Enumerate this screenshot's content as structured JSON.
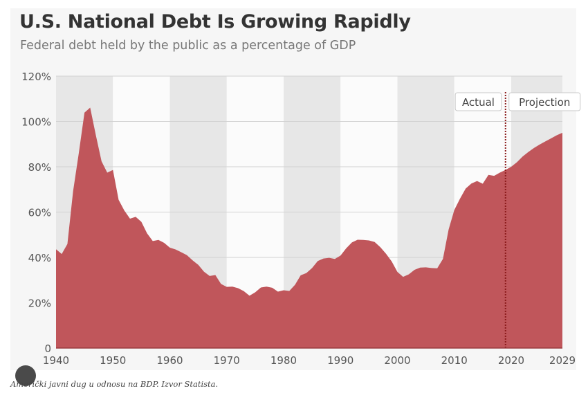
{
  "chart_data": {
    "type": "area",
    "title": "U.S. National Debt Is Growing Rapidly",
    "subtitle": "Federal debt held by the public as a percentage of GDP",
    "xlabel": "",
    "ylabel": "",
    "xlim": [
      1940,
      2029
    ],
    "ylim": [
      0,
      120
    ],
    "x_ticks": [
      1940,
      1950,
      1960,
      1970,
      1980,
      1990,
      2000,
      2010,
      2020,
      2029
    ],
    "y_ticks": [
      0,
      20,
      40,
      60,
      80,
      100,
      120
    ],
    "y_tick_labels": [
      "0",
      "20%",
      "40%",
      "60%",
      "80%",
      "100%",
      "120%"
    ],
    "projection_start": 2019,
    "annotations": {
      "actual": "Actual",
      "projection": "Projection"
    },
    "color": "#c0565b",
    "series": [
      {
        "name": "Federal debt held by the public (% of GDP)",
        "x": [
          1940,
          1941,
          1942,
          1943,
          1944,
          1945,
          1946,
          1947,
          1948,
          1949,
          1950,
          1951,
          1952,
          1953,
          1954,
          1955,
          1956,
          1957,
          1958,
          1959,
          1960,
          1961,
          1962,
          1963,
          1964,
          1965,
          1966,
          1967,
          1968,
          1969,
          1970,
          1971,
          1972,
          1973,
          1974,
          1975,
          1976,
          1977,
          1978,
          1979,
          1980,
          1981,
          1982,
          1983,
          1984,
          1985,
          1986,
          1987,
          1988,
          1989,
          1990,
          1991,
          1992,
          1993,
          1994,
          1995,
          1996,
          1997,
          1998,
          1999,
          2000,
          2001,
          2002,
          2003,
          2004,
          2005,
          2006,
          2007,
          2008,
          2009,
          2010,
          2011,
          2012,
          2013,
          2014,
          2015,
          2016,
          2017,
          2018,
          2019,
          2020,
          2021,
          2022,
          2023,
          2024,
          2025,
          2026,
          2027,
          2028,
          2029
        ],
        "values": [
          43.6,
          41.5,
          45.9,
          69.2,
          86.0,
          103.9,
          106.1,
          93.9,
          82.4,
          77.4,
          78.6,
          65.4,
          60.7,
          57.1,
          57.9,
          55.7,
          50.6,
          47.2,
          47.7,
          46.4,
          44.3,
          43.5,
          42.3,
          41.0,
          38.7,
          36.7,
          33.7,
          31.8,
          32.2,
          28.3,
          27.0,
          27.1,
          26.4,
          25.1,
          23.1,
          24.6,
          26.7,
          27.1,
          26.6,
          24.9,
          25.5,
          25.2,
          27.9,
          32.1,
          33.1,
          35.3,
          38.4,
          39.5,
          39.8,
          39.3,
          40.8,
          44.0,
          46.6,
          47.8,
          47.7,
          47.5,
          46.8,
          44.5,
          41.6,
          38.2,
          33.6,
          31.4,
          32.5,
          34.5,
          35.5,
          35.6,
          35.3,
          35.2,
          39.3,
          52.3,
          60.9,
          65.9,
          70.4,
          72.6,
          73.7,
          72.5,
          76.4,
          76.0,
          77.4,
          78.6,
          80.0,
          82.0,
          84.5,
          86.5,
          88.3,
          89.8,
          91.2,
          92.5,
          93.9,
          95.0
        ]
      }
    ]
  },
  "caption": "Američki javni dug u odnosu na BDP. Izvor Statista."
}
